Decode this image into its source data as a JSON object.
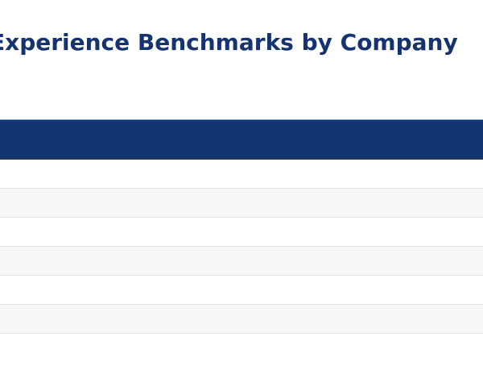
{
  "page": {
    "title": "Experience Benchmarks by Company"
  },
  "table": {
    "header_color": "#133573",
    "stripe_color": "#f7f7f7",
    "columns": [],
    "rows": [
      {
        "cells": []
      },
      {
        "cells": []
      },
      {
        "cells": []
      },
      {
        "cells": []
      },
      {
        "cells": []
      },
      {
        "cells": []
      }
    ]
  }
}
